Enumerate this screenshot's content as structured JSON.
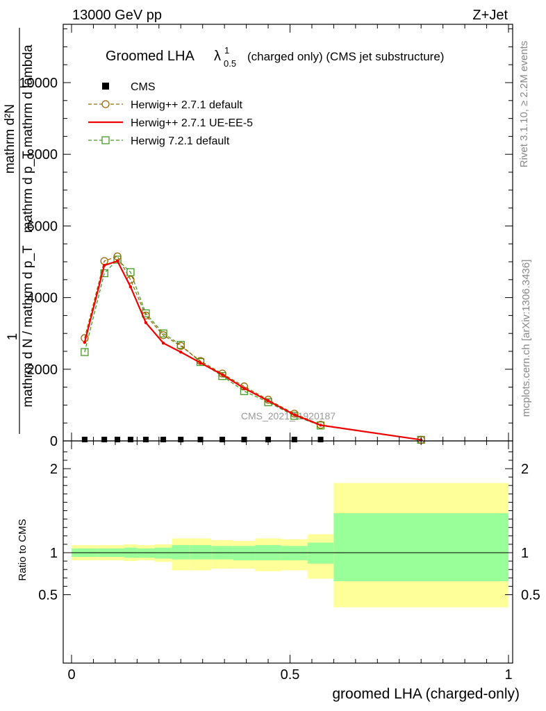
{
  "header": {
    "energy_label": "13000 GeV pp",
    "process_label": "Z+Jet"
  },
  "title": {
    "main": "Groomed LHA",
    "lambda": "λ",
    "sup": "1",
    "sub": "0.5",
    "suffix": "(charged only) (CMS jet substructure)"
  },
  "side_labels": {
    "rivet": "Rivet 3.1.10, ≥ 2.2M events",
    "mcplots": "mcplots.cern.ch [arXiv:1306.3436]"
  },
  "watermark": "CMS_2021_I1920187",
  "ylabel_top": {
    "numerator": "mathrm d²N",
    "denominator": "mathrm d p_T mathrm d lambda",
    "prefix_num": "1",
    "prefix_den": "mathrm d N / mathrm d p_T"
  },
  "colors": {
    "herwig_default": "#996600",
    "herwig_ueee5": "#ee0000",
    "herwig72": "#449922",
    "band_inner": "#99ff99",
    "band_outer": "#ffff99",
    "cms": "#000000"
  },
  "chart_data": [
    {
      "type": "line",
      "panel": "main",
      "xlim": [
        0,
        1
      ],
      "ylim": [
        0,
        11800
      ],
      "yticks": [
        0,
        2000,
        4000,
        6000,
        8000,
        10000
      ],
      "ytick_labels": [
        "0",
        "2000",
        "4000",
        "6000",
        "8000",
        "10000"
      ],
      "legend_position": "top-left",
      "legend": [
        "CMS",
        "Herwig++ 2.7.1 default",
        "Herwig++ 2.7.1 UE-EE-5",
        "Herwig 7.2.1 default"
      ],
      "series": [
        {
          "name": "CMS",
          "style": "square-marker",
          "x": [
            0.03,
            0.075,
            0.105,
            0.135,
            0.17,
            0.21,
            0.25,
            0.295,
            0.345,
            0.395,
            0.45,
            0.51,
            0.57
          ],
          "y": [
            0,
            0,
            0,
            0,
            0,
            0,
            0,
            0,
            0,
            0,
            0,
            0,
            0
          ]
        },
        {
          "name": "Herwig++ 2.7.1 default",
          "style": "dashed-circle",
          "x": [
            0.03,
            0.075,
            0.105,
            0.135,
            0.17,
            0.21,
            0.25,
            0.295,
            0.345,
            0.395,
            0.45,
            0.51,
            0.57,
            0.8
          ],
          "y": [
            2870,
            5020,
            5150,
            4500,
            3500,
            2950,
            2650,
            2230,
            1880,
            1520,
            1150,
            760,
            450,
            30
          ]
        },
        {
          "name": "Herwig++ 2.7.1 UE-EE-5",
          "style": "solid",
          "x": [
            0.03,
            0.075,
            0.105,
            0.135,
            0.17,
            0.21,
            0.25,
            0.295,
            0.345,
            0.395,
            0.45,
            0.51,
            0.57,
            0.8
          ],
          "y": [
            2750,
            4900,
            5020,
            4300,
            3300,
            2730,
            2480,
            2180,
            1850,
            1470,
            1120,
            730,
            440,
            30
          ]
        },
        {
          "name": "Herwig 7.2.1 default",
          "style": "dashed-square",
          "x": [
            0.03,
            0.075,
            0.105,
            0.135,
            0.17,
            0.21,
            0.25,
            0.295,
            0.345,
            0.395,
            0.45,
            0.51,
            0.57,
            0.8
          ],
          "y": [
            2480,
            4680,
            5060,
            4710,
            3560,
            3000,
            2680,
            2200,
            1810,
            1390,
            1080,
            700,
            430,
            30
          ]
        }
      ]
    },
    {
      "type": "area",
      "panel": "ratio",
      "ylabel": "Ratio to CMS",
      "xlabel": "groomed LHA (charged-only)",
      "xlim": [
        0,
        1
      ],
      "ylim": [
        0.35,
        2.3
      ],
      "xticks": [
        0,
        0.5,
        1
      ],
      "xtick_labels": [
        "0",
        "0.5",
        "1"
      ],
      "yticks": [
        0.5,
        1,
        2
      ],
      "ytick_labels": [
        "0.5",
        "1",
        "2"
      ],
      "reference_line": 1,
      "bin_edges": [
        0,
        0.06,
        0.09,
        0.12,
        0.15,
        0.19,
        0.23,
        0.27,
        0.32,
        0.37,
        0.42,
        0.48,
        0.54,
        0.6,
        1.0
      ],
      "inner_band_low": [
        0.95,
        0.95,
        0.95,
        0.94,
        0.94,
        0.93,
        0.92,
        0.92,
        0.92,
        0.91,
        0.91,
        0.91,
        0.87,
        0.66
      ],
      "inner_band_high": [
        1.05,
        1.05,
        1.05,
        1.06,
        1.05,
        1.06,
        1.09,
        1.09,
        1.08,
        1.08,
        1.09,
        1.08,
        1.12,
        1.47
      ],
      "outer_band_low": [
        0.91,
        0.91,
        0.91,
        0.9,
        0.91,
        0.89,
        0.79,
        0.79,
        0.81,
        0.81,
        0.78,
        0.79,
        0.69,
        0.35
      ],
      "outer_band_high": [
        1.09,
        1.09,
        1.09,
        1.1,
        1.09,
        1.1,
        1.17,
        1.17,
        1.15,
        1.14,
        1.17,
        1.16,
        1.22,
        1.83
      ]
    }
  ]
}
